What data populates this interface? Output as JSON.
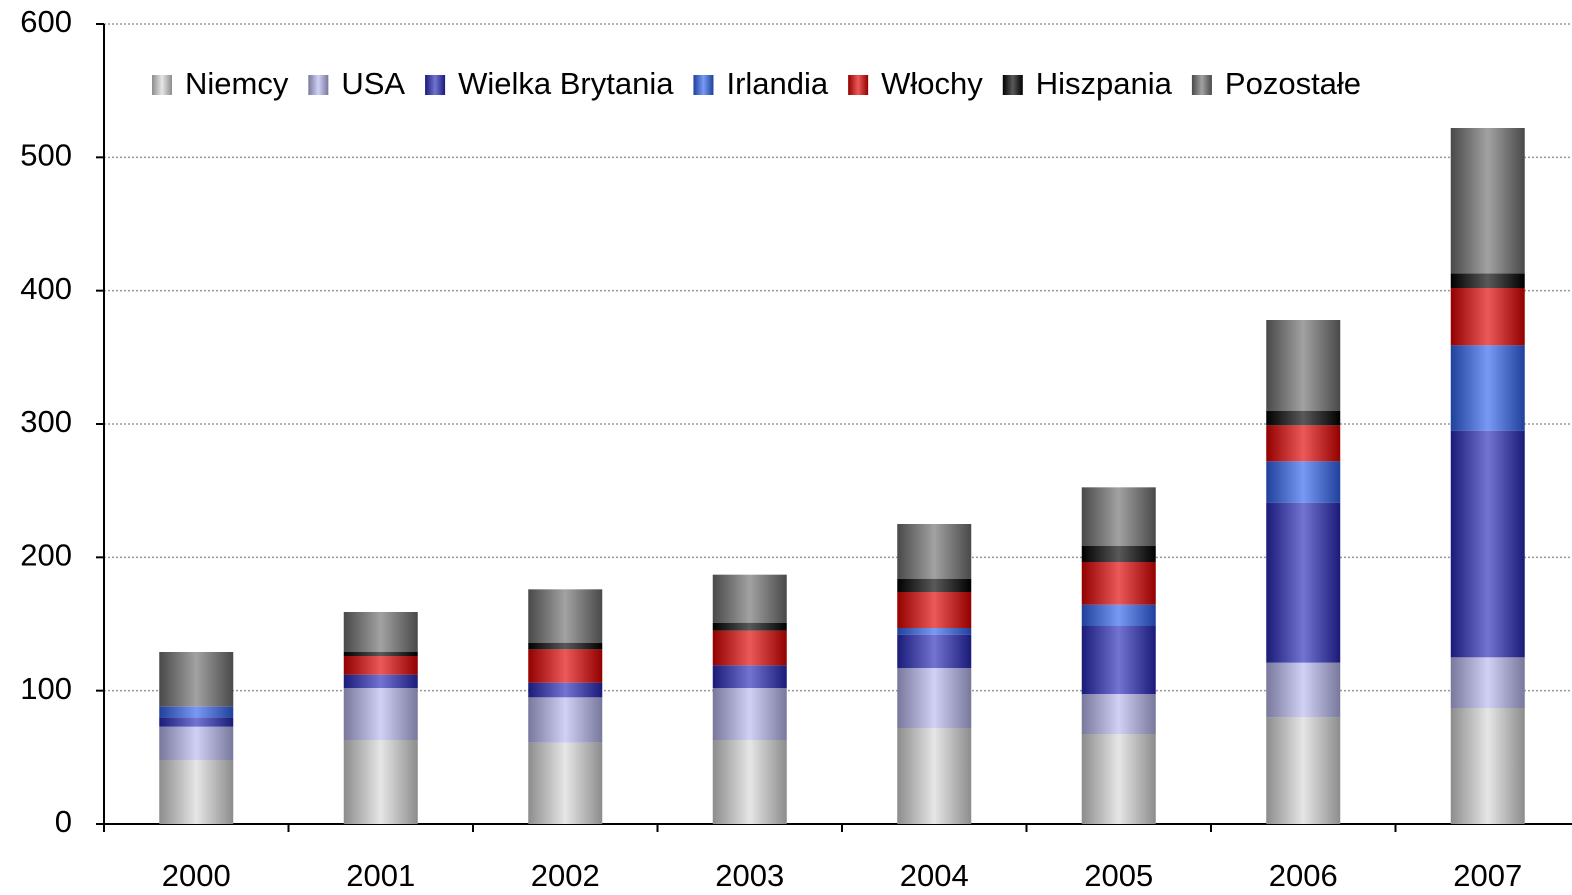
{
  "chart_data": {
    "type": "stacked_bar",
    "categories": [
      "2000",
      "2001",
      "2002",
      "2003",
      "2004",
      "2005",
      "2006",
      "2007"
    ],
    "series": [
      {
        "name": "Niemcy",
        "color": "#d8d8d8",
        "values": [
          48,
          63,
          61,
          63,
          72,
          67.5,
          80,
          87
        ]
      },
      {
        "name": "USA",
        "color": "#b8b8f0",
        "values": [
          25,
          39,
          34,
          39,
          45,
          30,
          41,
          38
        ]
      },
      {
        "name": "Wielka Brytania",
        "color": "#2828b8",
        "values": [
          7,
          10,
          11,
          17,
          25,
          51,
          120,
          170
        ]
      },
      {
        "name": "Irlandia",
        "color": "#3064f0",
        "values": [
          8,
          0,
          0,
          0,
          5,
          16,
          31,
          64
        ]
      },
      {
        "name": "Włochy",
        "color": "#e00000",
        "values": [
          0,
          14,
          25,
          26,
          27,
          32,
          27,
          43
        ]
      },
      {
        "name": "Hiszpania",
        "color": "#000000",
        "values": [
          0,
          3,
          5,
          6,
          10,
          12,
          11,
          11
        ]
      },
      {
        "name": "Pozostałe",
        "color": "#707070",
        "values": [
          41,
          30,
          40,
          36,
          41,
          44,
          68,
          109
        ]
      }
    ],
    "ylim": [
      0,
      600
    ],
    "yticks": [
      0,
      100,
      200,
      300,
      400,
      500,
      600
    ],
    "grid": true,
    "legend": "top"
  }
}
